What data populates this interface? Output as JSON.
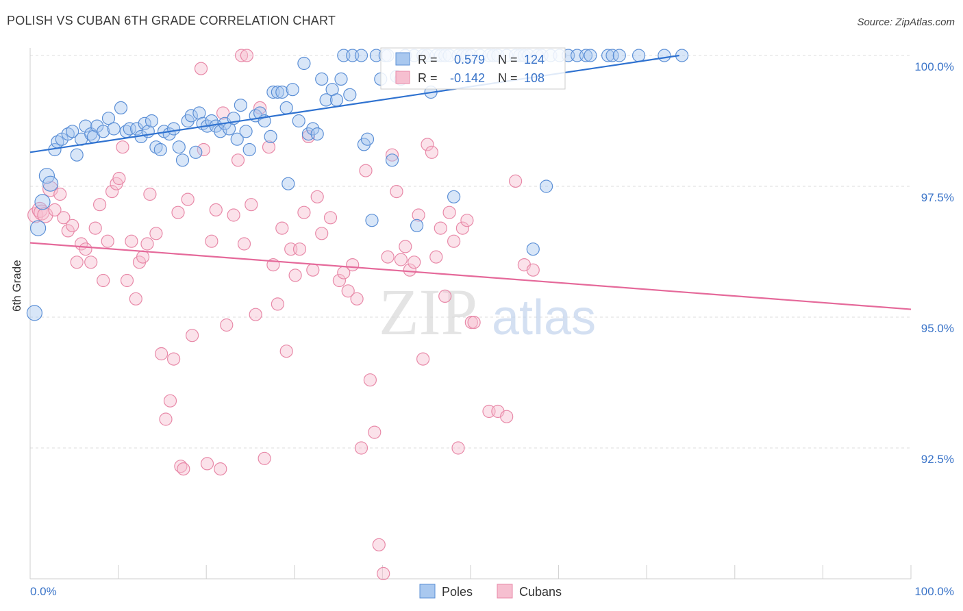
{
  "header": {
    "title": "POLISH VS CUBAN 6TH GRADE CORRELATION CHART",
    "source": "Source: ZipAtlas.com"
  },
  "watermark": {
    "zip": "ZIP",
    "atlas": "atlas"
  },
  "legend_box": {
    "rows": [
      {
        "r_label": "R =",
        "r_value": "0.579",
        "n_label": "N =",
        "n_value": "124"
      },
      {
        "r_label": "R =",
        "r_value": "-0.142",
        "n_label": "N =",
        "n_value": "108"
      }
    ]
  },
  "bottom_legend": {
    "poles": "Poles",
    "cubans": "Cubans"
  },
  "colors": {
    "poles_fill": "#a9c8ef",
    "poles_stroke": "#5b8fd6",
    "poles_line": "#2f72d0",
    "cubans_fill": "#f6bfd0",
    "cubans_stroke": "#e889a8",
    "cubans_line": "#e5699a",
    "value_text": "#3973c8",
    "grid": "#dddddd"
  },
  "chart_data": {
    "type": "scatter",
    "xlabel": "",
    "ylabel": "6th Grade",
    "xlim": [
      0,
      100
    ],
    "ylim": [
      90,
      100.2
    ],
    "x_tick_labels": {
      "left": "0.0%",
      "right": "100.0%"
    },
    "y_ticks": [
      {
        "value": 100.0,
        "label": "100.0%"
      },
      {
        "value": 97.5,
        "label": "97.5%"
      },
      {
        "value": 95.0,
        "label": "95.0%"
      },
      {
        "value": 92.5,
        "label": "92.5%"
      }
    ],
    "grid": true,
    "series": [
      {
        "name": "Poles",
        "r": 0.579,
        "n": 124,
        "trend": [
          [
            0,
            98.15
          ],
          [
            73.7,
            100.0
          ]
        ],
        "points": [
          [
            0.5,
            95.08
          ],
          [
            0.9,
            96.7
          ],
          [
            1.4,
            97.2
          ],
          [
            1.9,
            97.7
          ],
          [
            2.3,
            97.55
          ],
          [
            2.8,
            98.2
          ],
          [
            3.1,
            98.35
          ],
          [
            3.6,
            98.4
          ],
          [
            4.3,
            98.5
          ],
          [
            4.8,
            98.55
          ],
          [
            5.3,
            98.1
          ],
          [
            5.8,
            98.4
          ],
          [
            6.3,
            98.65
          ],
          [
            6.9,
            98.5
          ],
          [
            7.2,
            98.45
          ],
          [
            7.6,
            98.65
          ],
          [
            8.3,
            98.55
          ],
          [
            8.9,
            98.8
          ],
          [
            9.5,
            98.6
          ],
          [
            10.3,
            99.0
          ],
          [
            10.9,
            98.55
          ],
          [
            11.3,
            98.6
          ],
          [
            12.1,
            98.6
          ],
          [
            12.6,
            98.45
          ],
          [
            13.0,
            98.7
          ],
          [
            13.4,
            98.55
          ],
          [
            13.8,
            98.75
          ],
          [
            14.3,
            98.25
          ],
          [
            14.8,
            98.2
          ],
          [
            15.2,
            98.55
          ],
          [
            15.8,
            98.5
          ],
          [
            16.3,
            98.6
          ],
          [
            16.9,
            98.25
          ],
          [
            17.3,
            98.0
          ],
          [
            17.9,
            98.75
          ],
          [
            18.3,
            98.85
          ],
          [
            18.8,
            98.15
          ],
          [
            19.2,
            98.9
          ],
          [
            19.6,
            98.7
          ],
          [
            20.1,
            98.65
          ],
          [
            20.6,
            98.75
          ],
          [
            21.1,
            98.65
          ],
          [
            21.6,
            98.55
          ],
          [
            22.1,
            98.7
          ],
          [
            22.6,
            98.6
          ],
          [
            23.1,
            98.8
          ],
          [
            23.5,
            98.4
          ],
          [
            23.9,
            99.05
          ],
          [
            24.5,
            98.55
          ],
          [
            24.9,
            98.2
          ],
          [
            25.6,
            98.85
          ],
          [
            26.1,
            98.9
          ],
          [
            26.6,
            98.75
          ],
          [
            27.3,
            98.45
          ],
          [
            27.6,
            99.3
          ],
          [
            28.1,
            99.3
          ],
          [
            28.6,
            99.3
          ],
          [
            29.1,
            99.0
          ],
          [
            29.3,
            97.55
          ],
          [
            29.8,
            99.35
          ],
          [
            30.5,
            98.75
          ],
          [
            31.1,
            99.85
          ],
          [
            31.6,
            98.5
          ],
          [
            32.1,
            98.6
          ],
          [
            32.6,
            98.5
          ],
          [
            33.1,
            99.55
          ],
          [
            33.6,
            99.15
          ],
          [
            34.3,
            99.35
          ],
          [
            34.8,
            99.15
          ],
          [
            35.3,
            99.55
          ],
          [
            35.6,
            100.0
          ],
          [
            36.3,
            99.25
          ],
          [
            36.6,
            100.0
          ],
          [
            37.6,
            100.0
          ],
          [
            37.9,
            98.3
          ],
          [
            38.3,
            98.4
          ],
          [
            38.8,
            96.85
          ],
          [
            39.3,
            100.0
          ],
          [
            39.8,
            99.55
          ],
          [
            40.3,
            100.0
          ],
          [
            40.6,
            100.0
          ],
          [
            41.1,
            98.0
          ],
          [
            41.6,
            99.6
          ],
          [
            42.1,
            99.55
          ],
          [
            42.6,
            100.0
          ],
          [
            43.6,
            100.0
          ],
          [
            43.9,
            96.75
          ],
          [
            44.6,
            100.0
          ],
          [
            45.1,
            100.0
          ],
          [
            45.5,
            99.3
          ],
          [
            46.1,
            100.0
          ],
          [
            46.6,
            100.0
          ],
          [
            47.1,
            100.0
          ],
          [
            47.6,
            100.0
          ],
          [
            48.1,
            97.3
          ],
          [
            48.6,
            100.0
          ],
          [
            49.1,
            100.0
          ],
          [
            49.6,
            100.0
          ],
          [
            50.1,
            100.0
          ],
          [
            51.1,
            100.0
          ],
          [
            52.1,
            100.0
          ],
          [
            52.6,
            100.0
          ],
          [
            53.1,
            100.0
          ],
          [
            54.1,
            100.0
          ],
          [
            55.1,
            100.0
          ],
          [
            55.6,
            100.0
          ],
          [
            56.1,
            100.0
          ],
          [
            56.6,
            100.0
          ],
          [
            57.1,
            96.3
          ],
          [
            57.6,
            100.0
          ],
          [
            58.1,
            100.0
          ],
          [
            58.6,
            97.5
          ],
          [
            59.1,
            100.0
          ],
          [
            60.1,
            100.0
          ],
          [
            61.1,
            100.0
          ],
          [
            62.1,
            100.0
          ],
          [
            63.1,
            100.0
          ],
          [
            63.6,
            100.0
          ],
          [
            65.6,
            100.0
          ],
          [
            66.1,
            100.0
          ],
          [
            66.9,
            100.0
          ],
          [
            69.1,
            100.0
          ],
          [
            72.0,
            100.0
          ],
          [
            74.0,
            100.0
          ]
        ]
      },
      {
        "name": "Cubans",
        "r": -0.142,
        "n": 108,
        "trend": [
          [
            0,
            96.42
          ],
          [
            100,
            95.15
          ]
        ],
        "points": [
          [
            0.6,
            96.95
          ],
          [
            1.1,
            97.05
          ],
          [
            1.3,
            97.0
          ],
          [
            1.7,
            96.95
          ],
          [
            2.3,
            97.45
          ],
          [
            2.8,
            97.05
          ],
          [
            3.4,
            97.35
          ],
          [
            3.8,
            96.9
          ],
          [
            4.3,
            96.65
          ],
          [
            4.8,
            96.75
          ],
          [
            5.3,
            96.05
          ],
          [
            5.8,
            96.4
          ],
          [
            6.3,
            96.3
          ],
          [
            6.9,
            96.05
          ],
          [
            7.4,
            96.7
          ],
          [
            7.9,
            97.15
          ],
          [
            8.3,
            95.7
          ],
          [
            8.8,
            96.45
          ],
          [
            9.3,
            97.4
          ],
          [
            9.8,
            97.55
          ],
          [
            10.1,
            97.65
          ],
          [
            10.5,
            98.25
          ],
          [
            11.0,
            95.7
          ],
          [
            11.5,
            96.45
          ],
          [
            12.0,
            95.35
          ],
          [
            12.4,
            96.05
          ],
          [
            12.8,
            96.15
          ],
          [
            13.3,
            96.4
          ],
          [
            13.6,
            97.35
          ],
          [
            14.3,
            96.6
          ],
          [
            14.9,
            94.3
          ],
          [
            15.4,
            93.05
          ],
          [
            15.9,
            93.4
          ],
          [
            16.3,
            94.2
          ],
          [
            16.8,
            97.0
          ],
          [
            17.1,
            92.15
          ],
          [
            17.4,
            92.1
          ],
          [
            17.9,
            97.25
          ],
          [
            18.4,
            94.65
          ],
          [
            19.4,
            99.75
          ],
          [
            19.7,
            98.2
          ],
          [
            20.1,
            92.2
          ],
          [
            20.6,
            96.45
          ],
          [
            21.1,
            97.05
          ],
          [
            21.6,
            92.1
          ],
          [
            21.9,
            98.9
          ],
          [
            22.3,
            94.85
          ],
          [
            23.1,
            96.95
          ],
          [
            23.6,
            98.0
          ],
          [
            24.0,
            100.0
          ],
          [
            24.3,
            96.4
          ],
          [
            24.6,
            100.0
          ],
          [
            25.1,
            97.15
          ],
          [
            25.6,
            95.05
          ],
          [
            26.1,
            99.0
          ],
          [
            26.6,
            92.3
          ],
          [
            27.1,
            98.25
          ],
          [
            27.6,
            96.0
          ],
          [
            28.1,
            95.25
          ],
          [
            28.6,
            96.7
          ],
          [
            29.1,
            94.35
          ],
          [
            29.6,
            96.3
          ],
          [
            30.1,
            95.8
          ],
          [
            30.6,
            96.3
          ],
          [
            31.1,
            97.0
          ],
          [
            31.6,
            98.45
          ],
          [
            32.1,
            95.9
          ],
          [
            32.6,
            97.3
          ],
          [
            33.1,
            96.6
          ],
          [
            34.1,
            96.9
          ],
          [
            35.1,
            95.7
          ],
          [
            35.6,
            95.85
          ],
          [
            36.1,
            95.5
          ],
          [
            36.6,
            96.0
          ],
          [
            37.1,
            95.35
          ],
          [
            37.6,
            92.5
          ],
          [
            38.1,
            97.8
          ],
          [
            38.6,
            93.8
          ],
          [
            39.1,
            92.8
          ],
          [
            39.6,
            90.65
          ],
          [
            40.1,
            90.1
          ],
          [
            40.6,
            96.15
          ],
          [
            41.1,
            98.1
          ],
          [
            41.6,
            97.4
          ],
          [
            42.1,
            96.1
          ],
          [
            42.6,
            96.35
          ],
          [
            43.1,
            95.9
          ],
          [
            43.6,
            96.05
          ],
          [
            44.1,
            96.95
          ],
          [
            44.6,
            94.2
          ],
          [
            45.1,
            98.3
          ],
          [
            45.6,
            98.15
          ],
          [
            46.1,
            96.15
          ],
          [
            46.6,
            96.7
          ],
          [
            47.1,
            95.4
          ],
          [
            47.6,
            97.0
          ],
          [
            48.1,
            96.45
          ],
          [
            48.6,
            92.5
          ],
          [
            49.1,
            96.7
          ],
          [
            49.6,
            96.85
          ],
          [
            50.1,
            94.9
          ],
          [
            50.4,
            94.9
          ],
          [
            52.1,
            93.2
          ],
          [
            53.1,
            93.2
          ],
          [
            54.1,
            93.1
          ],
          [
            55.1,
            97.6
          ],
          [
            56.1,
            96.0
          ],
          [
            57.1,
            95.9
          ]
        ]
      }
    ]
  }
}
